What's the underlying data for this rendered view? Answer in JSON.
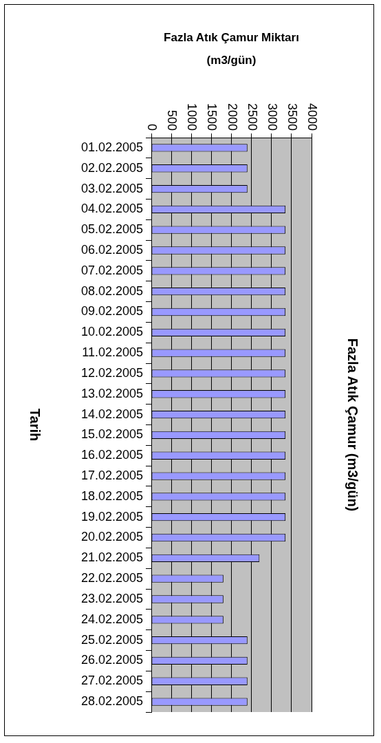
{
  "chart_data": {
    "type": "bar",
    "orientation": "horizontal",
    "title": "Fazla Atık Çamur Miktarı (m3/gün)",
    "ylabel": "Tarih",
    "y2label": "Fazla Atık Çamur (m3/gün)",
    "categories": [
      "01.02.2005",
      "02.02.2005",
      "03.02.2005",
      "04.02.2005",
      "05.02.2005",
      "06.02.2005",
      "07.02.2005",
      "08.02.2005",
      "09.02.2005",
      "10.02.2005",
      "11.02.2005",
      "12.02.2005",
      "13.02.2005",
      "14.02.2005",
      "15.02.2005",
      "16.02.2005",
      "17.02.2005",
      "18.02.2005",
      "19.02.2005",
      "20.02.2005",
      "21.02.2005",
      "22.02.2005",
      "23.02.2005",
      "24.02.2005",
      "25.02.2005",
      "26.02.2005",
      "27.02.2005",
      "28.02.2005"
    ],
    "values": [
      2400,
      2400,
      2400,
      3350,
      3350,
      3350,
      3350,
      3350,
      3350,
      3350,
      3350,
      3350,
      3350,
      3350,
      3350,
      3350,
      3350,
      3350,
      3350,
      3350,
      2700,
      1800,
      1800,
      1800,
      2400,
      2400,
      2400,
      2400
    ],
    "color": "#9999ff",
    "xlim": [
      0,
      4000
    ],
    "xticks": [
      0,
      500,
      1000,
      1500,
      2000,
      2500,
      3000,
      3500,
      4000
    ],
    "grid": "x",
    "legend": false
  }
}
